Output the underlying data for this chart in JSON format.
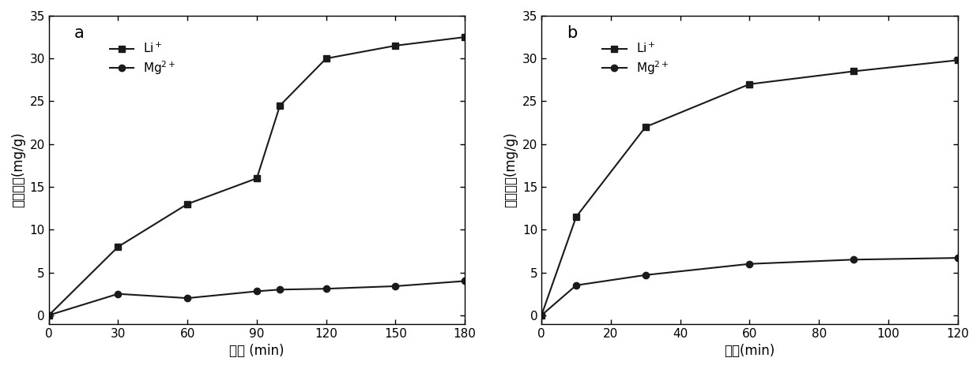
{
  "panel_a": {
    "label": "a",
    "Li_x": [
      0,
      30,
      60,
      90,
      100,
      120,
      150,
      180
    ],
    "Li_y": [
      0,
      8.0,
      13.0,
      16.0,
      24.5,
      30.0,
      31.5,
      32.5
    ],
    "Mg_x": [
      0,
      30,
      60,
      90,
      100,
      120,
      150,
      180
    ],
    "Mg_y": [
      0,
      2.5,
      2.0,
      2.8,
      3.0,
      3.1,
      3.4,
      4.0
    ],
    "xlabel": "时间 (min)",
    "ylabel": "交换容量(mg/g)",
    "xlim": [
      0,
      180
    ],
    "ylim": [
      -1,
      35
    ],
    "xticks": [
      0,
      30,
      60,
      90,
      120,
      150,
      180
    ],
    "yticks": [
      0,
      5,
      10,
      15,
      20,
      25,
      30,
      35
    ]
  },
  "panel_b": {
    "label": "b",
    "Li_x": [
      0,
      10,
      30,
      60,
      90,
      120
    ],
    "Li_y": [
      0,
      11.5,
      22.0,
      27.0,
      28.5,
      29.8
    ],
    "Mg_x": [
      0,
      10,
      30,
      60,
      90,
      120
    ],
    "Mg_y": [
      0,
      3.5,
      4.7,
      6.0,
      6.5,
      6.7
    ],
    "xlabel": "时间(min)",
    "ylabel": "交换容量(mg/g)",
    "xlim": [
      0,
      120
    ],
    "ylim": [
      -1,
      35
    ],
    "xticks": [
      0,
      20,
      40,
      60,
      80,
      100,
      120
    ],
    "yticks": [
      0,
      5,
      10,
      15,
      20,
      25,
      30,
      35
    ]
  },
  "legend_Li": "Li$^+$",
  "legend_Mg": "Mg$^{2+}$",
  "line_color": "#1a1a1a",
  "marker_square": "s",
  "marker_circle": "o",
  "marker_size": 6,
  "linewidth": 1.5,
  "background_color": "#ffffff",
  "label_fontsize": 12,
  "tick_fontsize": 11,
  "legend_fontsize": 11,
  "panel_label_fontsize": 15
}
